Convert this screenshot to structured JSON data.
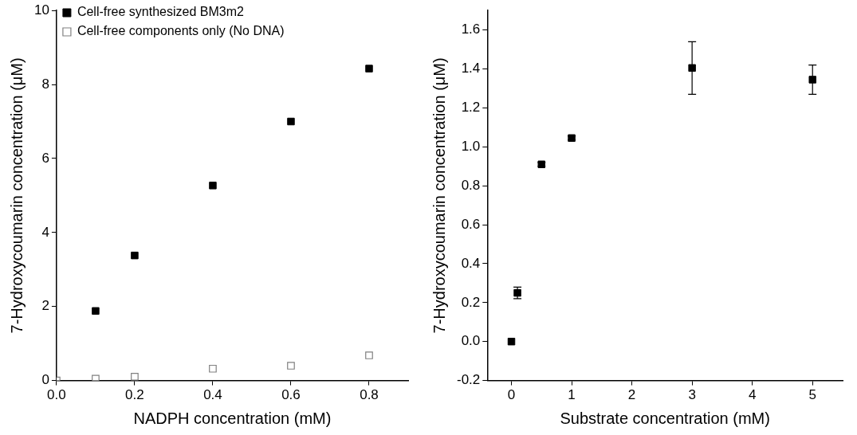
{
  "chart_data": [
    {
      "type": "scatter",
      "x_label": "NADPH concentration (mM)",
      "y_label": "7-Hydroxycoumarin concentration (μM)",
      "series": [
        {
          "name": "Cell-free synthesized BM3m2",
          "color": "#000000",
          "marker": "square",
          "x": [
            0.1,
            0.2,
            0.4,
            0.6,
            0.8
          ],
          "values": [
            1.88,
            3.38,
            5.27,
            7.0,
            8.43
          ]
        },
        {
          "name": "Cell-free components only (No DNA)",
          "color": "#808080",
          "marker": "open_square",
          "x": [
            0,
            0.1,
            0.2,
            0.4,
            0.6,
            0.8
          ],
          "values": [
            0,
            0.05,
            0.1,
            0.32,
            0.4,
            0.68
          ]
        }
      ],
      "xlim": [
        0,
        0.9
      ],
      "xticks": [
        {
          "value": 0,
          "label": "0.0"
        },
        0.2,
        0.4,
        0.6,
        0.8
      ],
      "ylim": [
        0,
        10
      ],
      "yticks": [
        0,
        2,
        4,
        6,
        8,
        10
      ],
      "grid": false,
      "legend": "upper left"
    },
    {
      "type": "scatter",
      "x_label": "Substrate concentration (mM)",
      "y_label": "7-Hydroxycoumarin concentration (μM)",
      "series": [
        {
          "color": "#000000",
          "marker": "square",
          "x": [
            0,
            0.1,
            0.5,
            1,
            3,
            5
          ],
          "values": [
            0,
            0.25,
            0.91,
            1.045,
            1.405,
            1.345
          ],
          "errors": [
            0,
            0.03,
            0.01,
            0.01,
            0.135,
            0.075
          ]
        }
      ],
      "xlim": [
        -0.4,
        5.5
      ],
      "xticks": [
        0,
        1,
        2,
        3,
        4,
        5
      ],
      "ylim": [
        -0.2,
        1.7
      ],
      "yticks": [
        -0.2,
        {
          "value": 0,
          "label": "0.0"
        },
        0.2,
        0.4,
        0.6,
        0.8,
        {
          "value": 1,
          "label": "1.0"
        },
        1.2,
        1.4,
        1.6
      ],
      "grid": false
    }
  ]
}
